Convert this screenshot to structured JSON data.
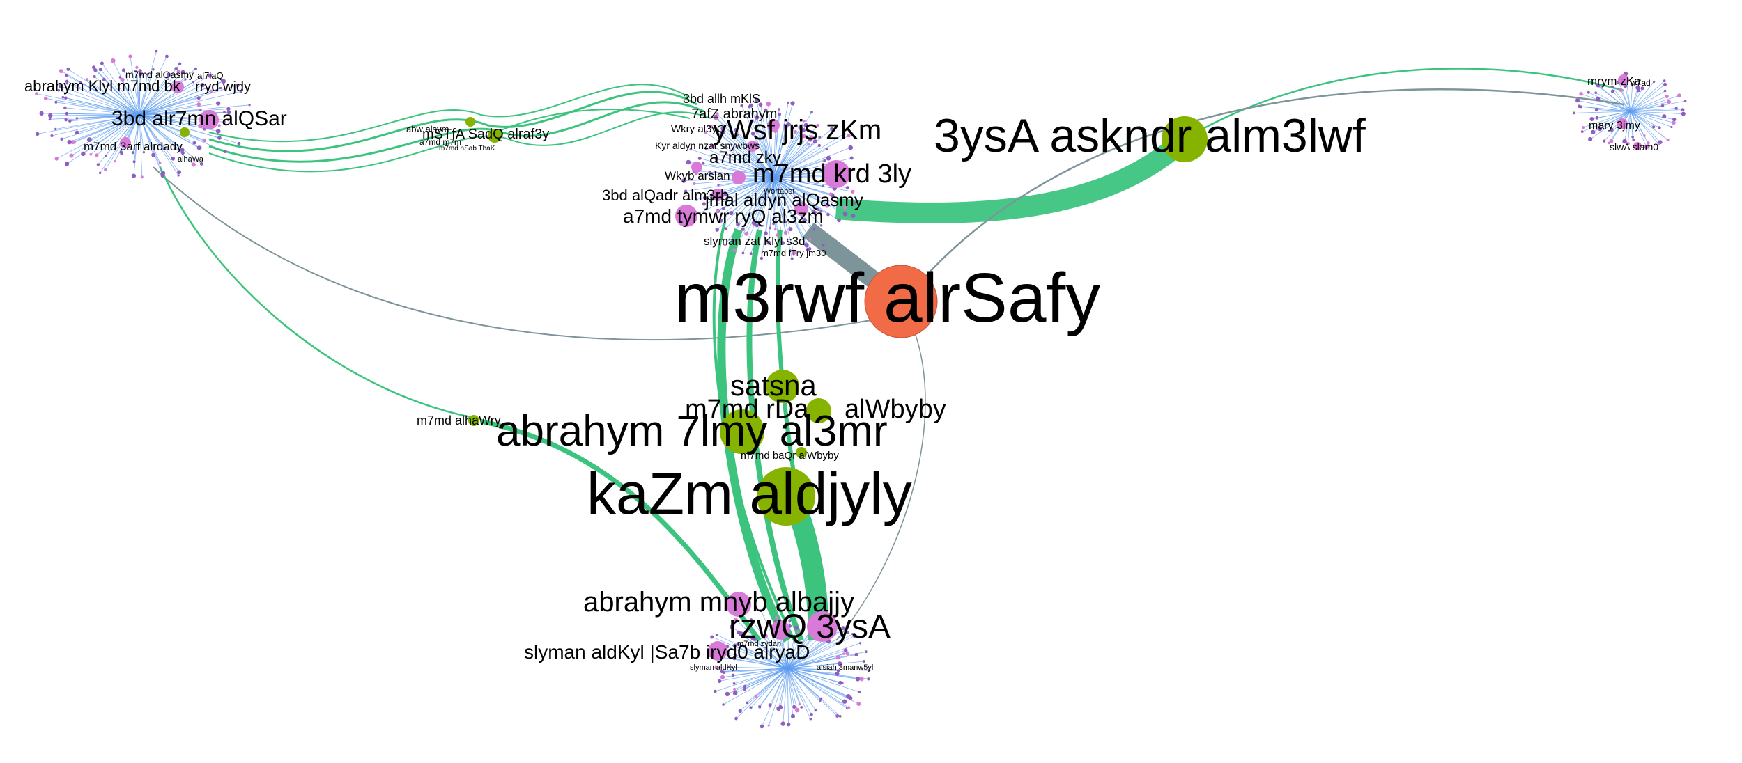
{
  "colors": {
    "background": "#ffffff",
    "main_hub": "#f26b47",
    "influencer": "#86b300",
    "user": "#d87ad8",
    "leaf": "#8e5fc0",
    "edge_green": "#3cc47f",
    "edge_gray": "#7d949b",
    "edge_blue": "#5c9cf0"
  },
  "labels": {
    "main_hub": "m3rwf  alrSafy",
    "kazm": "kaZm  aldjyly",
    "abrahym": "abrahym  7lmy  al3mr",
    "satsna": "satsna",
    "m7md_rda": "m7md  rDa",
    "alwbyby": "alWbyby",
    "m7md_baqr": "m7md  baQr  alWbyby",
    "asykndr": "3ysA  askndr  alm3lwf",
    "m7md_alhawry": "m7md  alhaWry",
    "msdfa": "mSTfA  SadQ  alraf3y",
    "abw_wsm": "abw  alsym",
    "a7md_m7m": "a7md  m7m",
    "m7md_nzab": "m7md  nSab  TbaK",
    "west_1": "abrahym  Klyl  m7md  bk",
    "west_2": "m7md  alQasmy",
    "west_3": "al7laQ",
    "west_4": "rryd  wjdy",
    "west_5": "3bd alr7mn  alQSar",
    "west_6": "m7md  3arf  alrdady",
    "west_7": "alhaWa",
    "east_1": "mrym  zKa",
    "east_2": "mary  3jmy",
    "east_3": "slwA  slam0",
    "east_4": "w7ad",
    "nc_1": "3bd  allh  mKlS",
    "nc_2": "7afZ  abrahym",
    "nc_3": "yWsf  jrjs  zKm",
    "nc_4": "a7md  zky",
    "nc_5": "m7md  krd  3ly",
    "nc_6": "3bd  alQadr  alm3rb",
    "nc_7": "jmal  aldyn  alQasmy",
    "nc_8": "a7md  tymwr  ryQ  al3zm",
    "nc_9": "Wkry  al3yQ",
    "nc_10": "Kyr aldyn  nzar  snywbws",
    "nc_11": "Wkyb  arslan",
    "nc_12": "slyman  zat  Klyl  s3d",
    "nc_13": "m7md  fTry  jm30",
    "nc_14": "Wortabet",
    "sc_1": "abrahym  mnyb  albajjy",
    "sc_2": "rzwQ  3ysA",
    "sc_3": "slyman  aldKyl  |Sa7b iryd0  alryaD",
    "sc_4": "slyman  aldKyl",
    "sc_5": "m7md  zydan",
    "sc_6": "alsiah  3manw5yl"
  }
}
